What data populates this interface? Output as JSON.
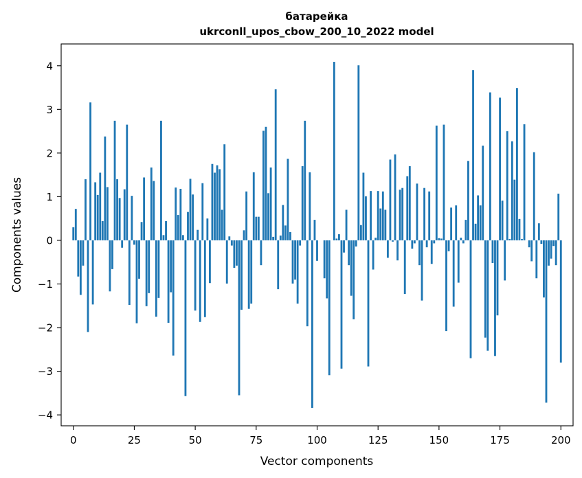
{
  "chart_data": {
    "type": "bar",
    "title_lines": [
      "батарейка",
      "ukrconll_upos_cbow_200_10_2022 model"
    ],
    "xlabel": "Vector components",
    "ylabel": "Components values",
    "xlim": [
      -5,
      205
    ],
    "ylim": [
      -4.25,
      4.5
    ],
    "x_ticks": [
      0,
      25,
      50,
      75,
      100,
      125,
      150,
      175,
      200
    ],
    "y_ticks": [
      -4,
      -3,
      -2,
      -1,
      0,
      1,
      2,
      3,
      4
    ],
    "x_tick_labels": [
      "0",
      "25",
      "50",
      "75",
      "100",
      "125",
      "150",
      "175",
      "200"
    ],
    "y_tick_labels": [
      "−4",
      "−3",
      "−2",
      "−1",
      "0",
      "1",
      "2",
      "3",
      "4"
    ],
    "bar_color": "#1f77b4",
    "grid": false,
    "values": [
      0.3,
      0.72,
      -0.83,
      -1.25,
      -0.58,
      1.4,
      -2.1,
      3.16,
      -1.47,
      1.33,
      1.04,
      1.55,
      0.44,
      2.38,
      1.22,
      -1.17,
      -0.66,
      2.74,
      1.4,
      0.97,
      -0.17,
      1.17,
      2.65,
      -1.48,
      1.02,
      -0.1,
      -1.9,
      -0.88,
      0.42,
      1.44,
      -1.51,
      -1.21,
      1.67,
      1.36,
      -1.75,
      -1.32,
      2.74,
      0.12,
      0.44,
      -1.89,
      -1.19,
      -2.64,
      1.21,
      0.58,
      1.18,
      0.12,
      -3.57,
      0.65,
      1.41,
      1.05,
      -1.61,
      0.24,
      -1.87,
      1.31,
      -1.76,
      0.5,
      -0.98,
      1.75,
      1.55,
      1.72,
      1.63,
      0.7,
      2.2,
      -0.99,
      0.09,
      -0.12,
      -0.63,
      -0.58,
      -3.55,
      -1.59,
      0.23,
      1.12,
      -1.57,
      -1.45,
      1.56,
      0.54,
      0.54,
      -0.57,
      2.51,
      2.6,
      1.08,
      1.67,
      0.08,
      3.46,
      -1.12,
      0.11,
      0.81,
      0.34,
      1.87,
      0.19,
      -0.99,
      -0.9,
      -1.45,
      -0.12,
      1.7,
      2.74,
      -1.97,
      1.56,
      -3.84,
      0.47,
      -0.47,
      0.0,
      0.0,
      -0.87,
      -1.33,
      -3.09,
      0.0,
      4.09,
      0.04,
      0.14,
      -2.94,
      -0.28,
      0.7,
      -0.57,
      -1.27,
      -1.81,
      -0.14,
      4.01,
      0.35,
      1.55,
      1.01,
      -2.89,
      1.13,
      -0.67,
      0.06,
      1.13,
      0.73,
      1.12,
      0.7,
      -0.4,
      1.85,
      -0.03,
      1.97,
      -0.46,
      1.16,
      1.2,
      -1.23,
      1.47,
      1.7,
      -0.19,
      -0.07,
      1.3,
      -0.57,
      -1.38,
      1.2,
      -0.16,
      1.12,
      -0.54,
      -0.07,
      2.63,
      0.05,
      0.04,
      2.65,
      -2.08,
      -0.25,
      0.75,
      -1.52,
      0.8,
      -0.97,
      0.06,
      -0.07,
      0.47,
      1.82,
      -2.7,
      3.9,
      0.38,
      1.03,
      0.8,
      2.17,
      -2.23,
      -2.53,
      3.39,
      -0.52,
      -2.65,
      -1.72,
      3.27,
      0.91,
      -0.92,
      2.5,
      0.03,
      2.27,
      1.39,
      3.49,
      0.49,
      0.03,
      2.66,
      0.0,
      -0.16,
      -0.48,
      2.02,
      -0.87,
      0.39,
      -0.08,
      -1.31,
      -3.72,
      -0.58,
      -0.42,
      -0.13,
      -0.57,
      1.07,
      -2.8
    ]
  }
}
